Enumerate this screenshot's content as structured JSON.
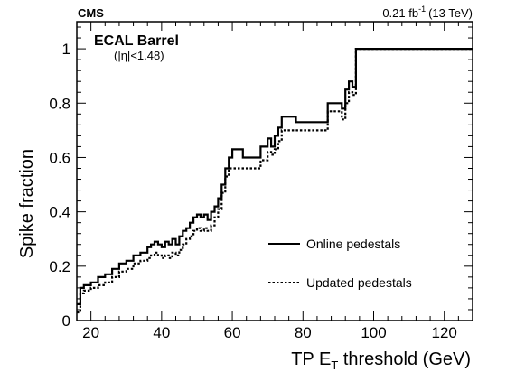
{
  "chart_data": {
    "type": "line",
    "experiment_label": "CMS",
    "lumi_label": "0.21 fb",
    "lumi_sup": "-1",
    "lumi_energy": "(13 TeV)",
    "annotation_title": "ECAL Barrel",
    "annotation_sub": "(|η|<1.48)",
    "xlabel_pre": "TP E",
    "xlabel_sub": "T",
    "xlabel_post": " threshold (GeV)",
    "ylabel": "Spike fraction",
    "xlim": [
      16,
      128
    ],
    "ylim": [
      0,
      1.1
    ],
    "x_ticks": [
      20,
      40,
      60,
      80,
      100,
      120
    ],
    "x_tick_labels": [
      "20",
      "40",
      "60",
      "80",
      "100",
      "120"
    ],
    "y_ticks": [
      0,
      0.2,
      0.4,
      0.6,
      0.8,
      1
    ],
    "y_tick_labels": [
      "0",
      "0.2",
      "0.4",
      "0.6",
      "0.8",
      "1"
    ],
    "grid": false,
    "legend_position": "lower-right",
    "series": [
      {
        "name": "Online pedestals",
        "style": "solid",
        "color": "#000000",
        "x": [
          16,
          17,
          18,
          20,
          22,
          24,
          26,
          28,
          30,
          32,
          34,
          36,
          37,
          38,
          39,
          40,
          41,
          42,
          43,
          44,
          45,
          46,
          47,
          48,
          49,
          50,
          51,
          52,
          53,
          54,
          55,
          56,
          57,
          58,
          59,
          60,
          62,
          63,
          66,
          68,
          70,
          71,
          72,
          73,
          74,
          78,
          82,
          87,
          90,
          91,
          92,
          93,
          94,
          95,
          128
        ],
        "y": [
          0.06,
          0.12,
          0.13,
          0.14,
          0.16,
          0.17,
          0.19,
          0.21,
          0.22,
          0.24,
          0.25,
          0.27,
          0.28,
          0.29,
          0.28,
          0.27,
          0.29,
          0.28,
          0.3,
          0.28,
          0.31,
          0.33,
          0.34,
          0.36,
          0.38,
          0.39,
          0.38,
          0.39,
          0.37,
          0.4,
          0.42,
          0.45,
          0.5,
          0.56,
          0.6,
          0.63,
          0.63,
          0.6,
          0.6,
          0.64,
          0.67,
          0.64,
          0.68,
          0.71,
          0.75,
          0.73,
          0.73,
          0.8,
          0.8,
          0.78,
          0.85,
          0.88,
          0.86,
          1.0,
          1.0
        ]
      },
      {
        "name": "Updated pedestals",
        "style": "dotted",
        "color": "#000000",
        "x": [
          16,
          17,
          18,
          20,
          22,
          24,
          26,
          28,
          30,
          32,
          34,
          36,
          37,
          38,
          39,
          40,
          41,
          42,
          43,
          44,
          45,
          46,
          47,
          48,
          49,
          50,
          51,
          52,
          53,
          54,
          55,
          56,
          57,
          58,
          59,
          60,
          62,
          63,
          66,
          68,
          70,
          71,
          72,
          73,
          74,
          78,
          82,
          87,
          90,
          91,
          92,
          93,
          94,
          95,
          128
        ],
        "y": [
          0.03,
          0.1,
          0.11,
          0.12,
          0.13,
          0.14,
          0.16,
          0.18,
          0.19,
          0.21,
          0.22,
          0.23,
          0.24,
          0.25,
          0.24,
          0.23,
          0.24,
          0.23,
          0.25,
          0.24,
          0.26,
          0.28,
          0.3,
          0.31,
          0.33,
          0.34,
          0.33,
          0.34,
          0.33,
          0.35,
          0.38,
          0.41,
          0.47,
          0.53,
          0.56,
          0.56,
          0.56,
          0.56,
          0.56,
          0.59,
          0.62,
          0.61,
          0.63,
          0.66,
          0.7,
          0.7,
          0.7,
          0.77,
          0.77,
          0.74,
          0.8,
          0.84,
          0.83,
          1.0,
          1.0
        ]
      }
    ]
  }
}
